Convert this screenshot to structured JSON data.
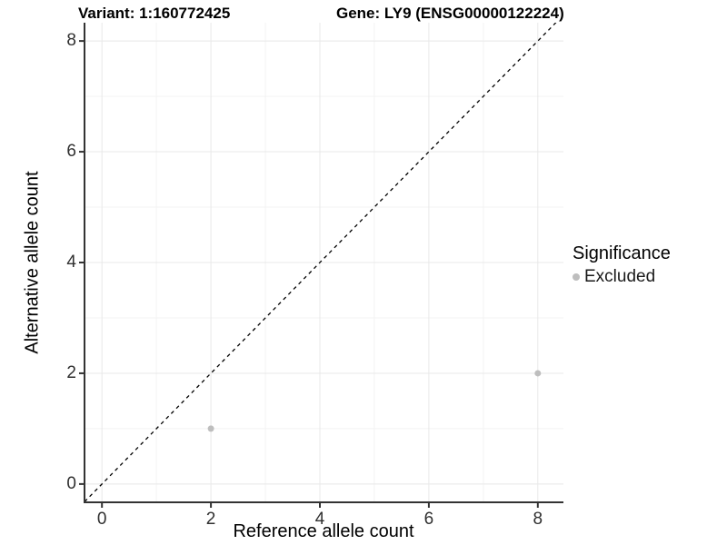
{
  "header": {
    "variant_title": "Variant: 1:160772425",
    "gene_title": "Gene: LY9 (ENSG00000122224)"
  },
  "legend": {
    "title": "Significance",
    "items": [
      {
        "label": "Excluded",
        "color": "#bebebe"
      }
    ]
  },
  "chart_data": {
    "type": "scatter",
    "title": "Variant: 1:160772425  /  Gene: LY9 (ENSG00000122224)",
    "xlabel": "Reference allele count",
    "ylabel": "Alternative allele count",
    "xlim": [
      -0.32,
      8.47
    ],
    "ylim": [
      -0.33,
      8.33
    ],
    "x_ticks": [
      0,
      2,
      4,
      6,
      8
    ],
    "y_ticks": [
      0,
      2,
      4,
      6,
      8
    ],
    "x_minor": [
      1,
      3,
      5,
      7
    ],
    "y_minor": [
      1,
      3,
      5,
      7
    ],
    "grid": "major+minor",
    "legend_position": "right",
    "series": [
      {
        "name": "Excluded",
        "color": "#bebebe",
        "points": [
          [
            2,
            1
          ],
          [
            8,
            2
          ]
        ]
      }
    ],
    "reference_line": {
      "type": "identity y=x",
      "style": "dashed",
      "color": "#000000"
    }
  },
  "colors": {
    "major_grid": "#e8e8e8",
    "minor_grid": "#f3f3f3",
    "axis_line": "#333333",
    "tick_mark": "#333333",
    "point": "#bebebe"
  }
}
